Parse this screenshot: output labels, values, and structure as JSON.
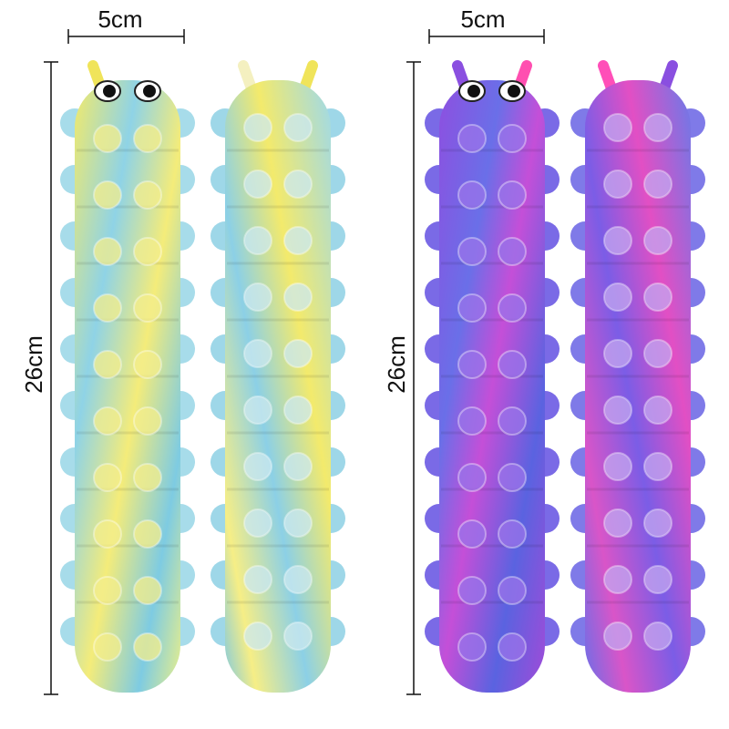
{
  "products": [
    {
      "width_label": "5cm",
      "height_label": "26cm"
    },
    {
      "width_label": "5cm",
      "height_label": "26cm"
    }
  ]
}
